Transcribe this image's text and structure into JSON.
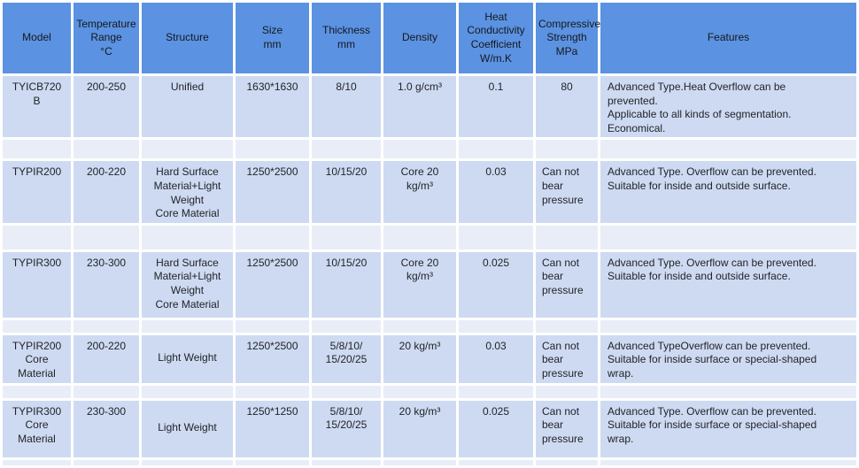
{
  "colors": {
    "header_bg": "#5b92e2",
    "row_bg": "#cedaf2",
    "spacer_bg": "#e9edf7",
    "grid": "#ffffff",
    "text": "#212428"
  },
  "table": {
    "columns": [
      {
        "key": "model",
        "label": "Model"
      },
      {
        "key": "temperature",
        "label": "Temperature\nRange\n°C"
      },
      {
        "key": "structure",
        "label": "Structure"
      },
      {
        "key": "size",
        "label": "Size\nmm"
      },
      {
        "key": "thickness",
        "label": "Thickness\nmm"
      },
      {
        "key": "density",
        "label": "Density"
      },
      {
        "key": "heat",
        "label": "Heat\nConductivity\nCoefficient\nW/m.K"
      },
      {
        "key": "compressive",
        "label": "Compressive\nStrength\nMPa"
      },
      {
        "key": "features",
        "label": "Features"
      }
    ],
    "rows": [
      {
        "model": "TYICB720\nB",
        "temperature": "200-250",
        "structure": "Unified",
        "size": "1630*1630",
        "thickness": "8/10",
        "density": "1.0 g/cm³",
        "heat": "0.1",
        "compressive": "80",
        "features": "Advanced Type.Heat Overflow can be\nprevented.\nApplicable to all kinds of segmentation.\nEconomical."
      },
      {
        "model": "TYPIR200",
        "temperature": "200-220",
        "structure": "Hard Surface\nMaterial+Light\nWeight\nCore Material",
        "size": "1250*2500",
        "thickness": "10/15/20",
        "density": "Core 20\nkg/m³",
        "heat": "0.03",
        "compressive": "Can not\nbear\npressure",
        "features": "Advanced Type. Overflow can be prevented.\nSuitable for inside and outside surface."
      },
      {
        "model": "TYPIR300",
        "temperature": "230-300",
        "structure": "Hard Surface\nMaterial+Light\nWeight\nCore Material",
        "size": "1250*2500",
        "thickness": "10/15/20",
        "density": "Core 20\nkg/m³",
        "heat": "0.025",
        "compressive": "Can not\nbear\npressure",
        "features": "Advanced Type. Overflow can be prevented.\nSuitable for inside and outside surface."
      },
      {
        "model": "TYPIR200\nCore\nMaterial",
        "temperature": "200-220",
        "structure": "Light Weight",
        "size": "1250*2500",
        "thickness": "5/8/10/\n15/20/25",
        "density": "20 kg/m³",
        "heat": "0.03",
        "compressive": "Can not\nbear\npressure",
        "features": "Advanced TypeOverflow can be prevented.\nSuitable for inside surface or special-shaped\nwrap."
      },
      {
        "model": "TYPIR300\nCore\nMaterial",
        "temperature": "230-300",
        "structure": "Light Weight",
        "size": "1250*1250",
        "thickness": "5/8/10/\n15/20/25",
        "density": "20 kg/m³",
        "heat": "0.025",
        "compressive": "Can not\nbear\npressure",
        "features": "Advanced Type. Overflow can be prevented.\nSuitable for inside surface or special-shaped\nwrap."
      }
    ]
  }
}
